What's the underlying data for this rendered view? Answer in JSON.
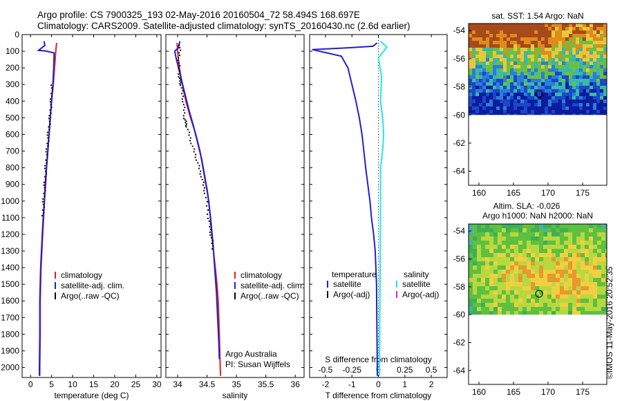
{
  "title": {
    "line1": "Argo profile: CS 7900325_193 02-May-2016 20160504_72 58.494S 168.697E",
    "line2": "Climatology: CARS2009. Satellite-adjusted climatology: synTS_20160430.nc (2.6d earlier)"
  },
  "stamp": "©IMOS 11-May-2016 20:52:35",
  "colors": {
    "climatology": "#e81c1c",
    "satellite": "#1f1fd0",
    "argo": "#000000",
    "sat_salinity": "#22e8e8",
    "argo_salinity": "#e020d0"
  },
  "chart_data": [
    {
      "id": "temperature",
      "type": "line",
      "xlabel": "temperature (deg C)",
      "ylabel": "",
      "xlim": [
        -2,
        31
      ],
      "ylim": [
        2060,
        0
      ],
      "xticks": [
        0,
        5,
        10,
        15,
        20,
        25,
        30
      ],
      "yticks": [
        0,
        100,
        200,
        300,
        400,
        500,
        600,
        700,
        800,
        900,
        1000,
        1100,
        1200,
        1300,
        1400,
        1500,
        1600,
        1700,
        1800,
        1900,
        2000
      ],
      "legend": {
        "position": "lower-center",
        "entries": [
          "climatology",
          "satellite-adj. clim.",
          "Argo(..raw -QC)"
        ]
      },
      "series": [
        {
          "name": "climatology",
          "color_key": "climatology",
          "x": [
            6.2,
            6.0,
            5.7,
            5.4,
            5.0,
            4.7,
            4.4,
            4.1,
            3.8,
            3.6,
            3.3,
            3.1,
            2.9,
            2.7,
            2.5,
            2.4,
            2.3,
            2.3,
            2.2,
            2.2
          ],
          "y": [
            50,
            100,
            200,
            300,
            400,
            500,
            600,
            700,
            800,
            900,
            1000,
            1100,
            1200,
            1300,
            1400,
            1500,
            1600,
            1800,
            2000,
            2050
          ]
        },
        {
          "name": "satellite-adj. clim.",
          "color_key": "satellite",
          "x": [
            3.2,
            3.4,
            1.9,
            3.5,
            5.6,
            5.5,
            5.3,
            5.0,
            4.7,
            4.4,
            4.1,
            3.8,
            3.5,
            3.3,
            3.0,
            2.8,
            2.6,
            2.4,
            2.3,
            2.2,
            2.2,
            2.1,
            2.1
          ],
          "y": [
            40,
            65,
            95,
            98,
            110,
            200,
            300,
            400,
            500,
            600,
            700,
            800,
            900,
            1000,
            1100,
            1200,
            1300,
            1400,
            1500,
            1600,
            1800,
            2000,
            2050
          ]
        },
        {
          "name": "Argo(..raw -QC)",
          "color_key": "argo",
          "x": [
            5.1,
            4.9,
            4.6,
            4.2,
            3.9,
            3.6,
            3.4,
            3.1,
            2.9
          ],
          "y": [
            300,
            400,
            500,
            600,
            700,
            800,
            900,
            1000,
            1100
          ]
        }
      ]
    },
    {
      "id": "salinity",
      "type": "line",
      "xlabel": "salinity",
      "ylabel": "",
      "xlim": [
        33.8,
        36.15
      ],
      "ylim": [
        2060,
        0
      ],
      "xticks": [
        34,
        34.5,
        35,
        35.5,
        36
      ],
      "legend": {
        "position": "lower-right",
        "entries": [
          "climatology",
          "satellite-adj. clim.",
          "Argo(..raw -QC)"
        ]
      },
      "annotation": [
        "Argo Australia",
        "PI: Susan Wijffels"
      ],
      "series": [
        {
          "name": "climatology",
          "color_key": "climatology",
          "x": [
            33.99,
            34.0,
            34.03,
            34.08,
            34.14,
            34.22,
            34.31,
            34.38,
            34.43,
            34.48,
            34.53,
            34.58,
            34.61,
            34.64,
            34.67,
            34.69,
            34.71,
            34.72,
            34.73
          ],
          "y": [
            50,
            100,
            200,
            300,
            400,
            500,
            600,
            700,
            800,
            900,
            1000,
            1200,
            1300,
            1400,
            1500,
            1600,
            1800,
            1950,
            2050
          ]
        },
        {
          "name": "satellite-adj. clim.",
          "color_key": "satellite",
          "x": [
            34.04,
            34.01,
            33.95,
            33.98,
            34.05,
            34.12,
            34.19,
            34.27,
            34.34,
            34.41,
            34.46,
            34.51,
            34.56,
            34.6,
            34.63,
            34.66,
            34.68,
            34.7,
            34.71
          ],
          "y": [
            40,
            80,
            100,
            150,
            250,
            350,
            450,
            550,
            650,
            750,
            850,
            950,
            1100,
            1250,
            1400,
            1550,
            1700,
            1850,
            1950
          ]
        },
        {
          "name": "Argo(..raw -QC)",
          "color_key": "argo",
          "x": [
            34.04,
            34.02,
            34.03,
            34.06,
            34.1,
            34.12,
            34.16,
            34.24,
            34.33,
            34.41,
            34.47,
            34.53,
            34.57,
            34.61
          ],
          "y": [
            60,
            150,
            250,
            300,
            400,
            500,
            550,
            650,
            750,
            850,
            950,
            1100,
            1200,
            1300
          ]
        }
      ]
    },
    {
      "id": "difference",
      "type": "line",
      "xlabel": "T difference from climatology",
      "xlabel2": "S difference from climatology",
      "xlim": [
        -2.6,
        2.6
      ],
      "x2lim": [
        -0.65,
        0.65
      ],
      "ylim": [
        2060,
        0
      ],
      "xticks": [
        -2,
        -1,
        0,
        1,
        2
      ],
      "x2ticks": [
        -0.5,
        -0.25,
        0,
        0.25,
        0.5
      ],
      "x2ticklabels": [
        "-0.5",
        "-0.25",
        "0",
        "0.25",
        "0.5"
      ],
      "legend": {
        "position": "lower-center",
        "headers": [
          "temperature",
          "salinity"
        ],
        "entries": [
          "satellite",
          "Argo(-adj)",
          "satellite",
          "Argo(-adj)"
        ]
      },
      "series": [
        {
          "name": "satellite",
          "group": "temperature",
          "color_key": "satellite",
          "x": [
            -0.05,
            -0.2,
            -1.2,
            -2.5,
            -1.4,
            -1.15,
            -1.0,
            -0.85,
            -0.72,
            -0.62,
            -0.55,
            -0.48,
            -0.4,
            -0.32,
            -0.26,
            -0.18,
            -0.12,
            -0.07,
            -0.04
          ],
          "y": [
            50,
            70,
            80,
            90,
            130,
            200,
            300,
            400,
            500,
            600,
            700,
            800,
            900,
            1000,
            1100,
            1200,
            1300,
            1500,
            2050
          ]
        },
        {
          "name": "satellite",
          "group": "salinity",
          "color_key": "sat_salinity",
          "x": [
            0.02,
            0.08,
            0.05,
            0.0,
            0.03,
            0.02,
            0.04,
            0.05,
            0.04,
            0.02,
            0.02,
            0.01
          ],
          "y": [
            40,
            75,
            100,
            140,
            250,
            400,
            500,
            600,
            700,
            800,
            1000,
            2050
          ]
        }
      ]
    }
  ],
  "maps": {
    "sst": {
      "title": "sat. SST: 1.54 Argo: NaN",
      "xticks": [
        160,
        165,
        170,
        175
      ],
      "yticks": [
        -54,
        -56,
        -58,
        -60,
        -62,
        -64
      ],
      "xlim": [
        158.5,
        178.5
      ],
      "ylim": [
        -65,
        -53.5
      ],
      "data_extent_lat": [
        -60,
        -53.5
      ],
      "marker": {
        "lon": 168.7,
        "lat": -58.5
      }
    },
    "sla": {
      "title1": "Altim. SLA: -0.026",
      "title2": "Argo h1000: NaN h2000: NaN",
      "xticks": [
        160,
        165,
        170,
        175
      ],
      "yticks": [
        -54,
        -56,
        -58,
        -60,
        -62,
        -64
      ],
      "xlim": [
        158.5,
        178.5
      ],
      "ylim": [
        -65,
        -53.5
      ],
      "data_extent_lat": [
        -60,
        -53.5
      ],
      "marker": {
        "lon": 168.7,
        "lat": -58.5
      }
    }
  }
}
